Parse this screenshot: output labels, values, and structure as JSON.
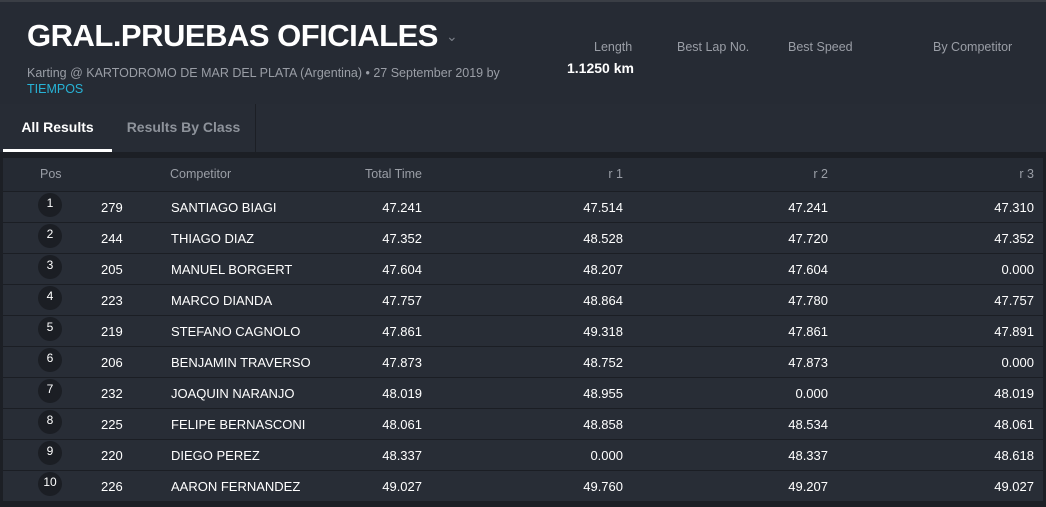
{
  "header": {
    "title": "GRAL.PRUEBAS OFICIALES",
    "subtitle": "Karting @ KARTODROMO DE MAR DEL PLATA (Argentina) • 27 September 2019 by",
    "organizer": "TIEMPOS",
    "stats": {
      "length_label": "Length",
      "length_value": "1.1250 km",
      "best_lap_label": "Best Lap No.",
      "best_speed_label": "Best Speed",
      "by_competitor_label": "By Competitor"
    }
  },
  "tabs": [
    {
      "label": "All Results",
      "active": true
    },
    {
      "label": "Results By Class",
      "active": false
    }
  ],
  "table": {
    "columns": {
      "pos": "Pos",
      "competitor": "Competitor",
      "total": "Total Time",
      "r1": "r 1",
      "r2": "r 2",
      "r3": "r 3"
    },
    "rows": [
      {
        "pos": "1",
        "no": "279",
        "name": "SANTIAGO BIAGI",
        "total": "47.241",
        "r1": "47.514",
        "r2": "47.241",
        "r3": "47.310"
      },
      {
        "pos": "2",
        "no": "244",
        "name": "THIAGO DIAZ",
        "total": "47.352",
        "r1": "48.528",
        "r2": "47.720",
        "r3": "47.352"
      },
      {
        "pos": "3",
        "no": "205",
        "name": "MANUEL BORGERT",
        "total": "47.604",
        "r1": "48.207",
        "r2": "47.604",
        "r3": "0.000"
      },
      {
        "pos": "4",
        "no": "223",
        "name": "MARCO DIANDA",
        "total": "47.757",
        "r1": "48.864",
        "r2": "47.780",
        "r3": "47.757"
      },
      {
        "pos": "5",
        "no": "219",
        "name": "STEFANO CAGNOLO",
        "total": "47.861",
        "r1": "49.318",
        "r2": "47.861",
        "r3": "47.891"
      },
      {
        "pos": "6",
        "no": "206",
        "name": "BENJAMIN TRAVERSO",
        "total": "47.873",
        "r1": "48.752",
        "r2": "47.873",
        "r3": "0.000"
      },
      {
        "pos": "7",
        "no": "232",
        "name": "JOAQUIN NARANJO",
        "total": "48.019",
        "r1": "48.955",
        "r2": "0.000",
        "r3": "48.019"
      },
      {
        "pos": "8",
        "no": "225",
        "name": "FELIPE BERNASCONI",
        "total": "48.061",
        "r1": "48.858",
        "r2": "48.534",
        "r3": "48.061"
      },
      {
        "pos": "9",
        "no": "220",
        "name": "DIEGO PEREZ",
        "total": "48.337",
        "r1": "0.000",
        "r2": "48.337",
        "r3": "48.618"
      },
      {
        "pos": "10",
        "no": "226",
        "name": "AARON FERNANDEZ",
        "total": "49.027",
        "r1": "49.760",
        "r2": "49.207",
        "r3": "49.027"
      }
    ]
  },
  "colors": {
    "accent": "#27b3d6",
    "background": "#262b34"
  }
}
